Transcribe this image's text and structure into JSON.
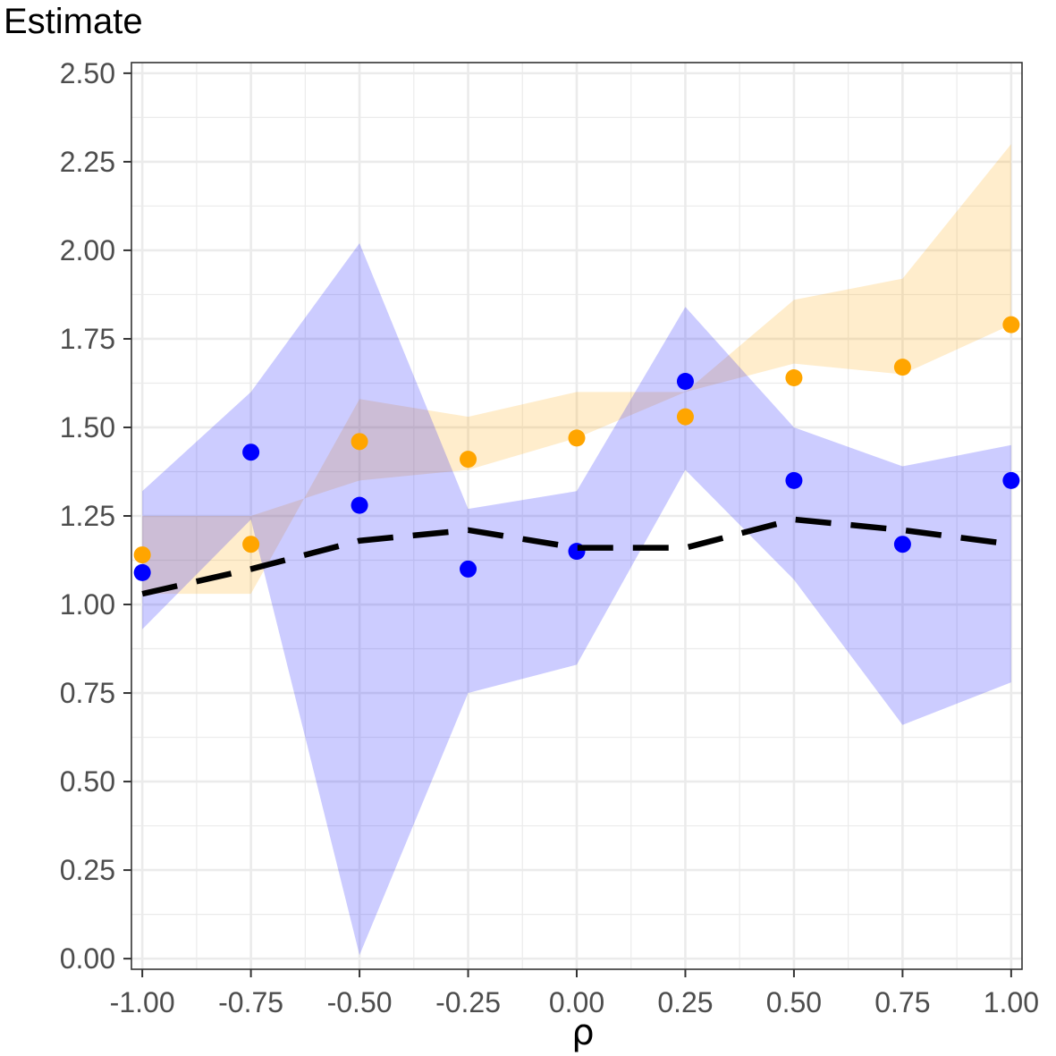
{
  "chart_data": {
    "type": "line",
    "title": "Estimate",
    "xlabel": "ρ",
    "ylabel": "",
    "x": [
      -1.0,
      -0.75,
      -0.5,
      -0.25,
      0.0,
      0.25,
      0.5,
      0.75,
      1.0
    ],
    "x_tick_labels": [
      "-1.00",
      "-0.75",
      "-0.50",
      "-0.25",
      "0.00",
      "0.25",
      "0.50",
      "0.75",
      "1.00"
    ],
    "y_tick_labels": [
      "0.00",
      "0.25",
      "0.50",
      "0.75",
      "1.00",
      "1.25",
      "1.50",
      "1.75",
      "2.00",
      "2.25",
      "2.50"
    ],
    "xlim": [
      -1.025,
      1.025
    ],
    "ylim": [
      -0.03,
      2.53
    ],
    "grid": true,
    "series": [
      {
        "color": "#ffa500",
        "point_values": [
          1.14,
          1.17,
          1.46,
          1.41,
          1.47,
          1.53,
          1.64,
          1.67,
          1.79
        ],
        "band_lower": [
          1.25,
          1.25,
          1.35,
          1.38,
          1.47,
          1.6,
          1.68,
          1.65,
          1.79
        ],
        "band_upper": [
          1.03,
          1.03,
          1.58,
          1.53,
          1.6,
          1.6,
          1.86,
          1.92,
          2.3
        ]
      },
      {
        "color": "#0000ff",
        "point_values": [
          1.09,
          1.43,
          1.28,
          1.1,
          1.15,
          1.63,
          1.35,
          1.17,
          1.35
        ],
        "band_lower": [
          0.93,
          1.24,
          0.01,
          0.75,
          0.83,
          1.38,
          1.07,
          0.66,
          0.78
        ],
        "band_upper": [
          1.32,
          1.6,
          2.02,
          1.27,
          1.32,
          1.84,
          1.5,
          1.39,
          1.45
        ]
      }
    ],
    "reference_line": {
      "style": "dashed",
      "color": "#000000",
      "values": [
        1.03,
        1.1,
        1.18,
        1.21,
        1.16,
        1.16,
        1.24,
        1.21,
        1.17
      ]
    }
  }
}
